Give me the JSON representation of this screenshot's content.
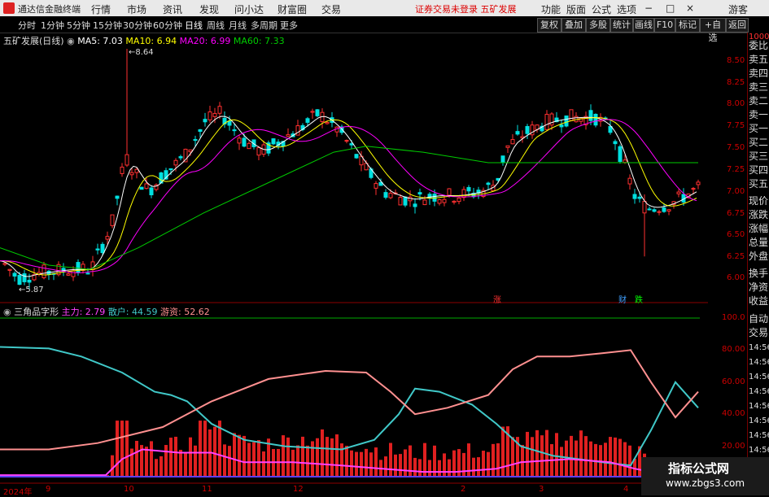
{
  "titlebar": {
    "app_name": "通达信金融终端",
    "menu": [
      "行情",
      "市场",
      "资讯",
      "发现",
      "问小达",
      "财富圈",
      "交易"
    ],
    "warning": "证券交易未登录  五矿发展",
    "right_menu": [
      "功能",
      "版面",
      "公式",
      "选项"
    ],
    "guest": "游客",
    "window_controls": [
      "−",
      "□",
      "×"
    ]
  },
  "toolbar": {
    "periods": [
      "分时",
      "1分钟",
      "5分钟",
      "15分钟",
      "30分钟",
      "60分钟",
      "日线",
      "周线",
      "月线",
      "多周期",
      "更多"
    ],
    "active_period": "日线",
    "right_buttons": [
      "复权",
      "叠加",
      "多股",
      "统计",
      "画线",
      "F10",
      "标记",
      "+自选",
      "返回"
    ]
  },
  "main_legend": {
    "name": "五矿发展(日线)",
    "ma5": "MA5: 7.03",
    "ma10": "MA10: 6.94",
    "ma20": "MA20: 6.99",
    "ma60": "MA60: 7.33"
  },
  "main_annotations": {
    "high_label": "8.64",
    "low_label": "5.87",
    "zhang": "涨",
    "cai": "财",
    "die": "跌"
  },
  "price_axis": [
    "8.50",
    "8.25",
    "8.00",
    "7.75",
    "7.50",
    "7.25",
    "7.00",
    "6.75",
    "6.50",
    "6.25",
    "6.00"
  ],
  "indicator_legend": {
    "name": "三角品字形",
    "zhuli": "主力: 2.79",
    "sanhu": "散户: 44.59",
    "youzi": "游资: 52.62"
  },
  "indicator_axis": [
    "100.0",
    "80.00",
    "60.00",
    "40.00",
    "20.00"
  ],
  "date_axis": [
    "2024年",
    "9",
    "10",
    "11",
    "12",
    "2",
    "3",
    "4"
  ],
  "right_panel": {
    "top_small": "1000",
    "items": [
      "委比",
      "卖五",
      "卖四",
      "卖三",
      "卖二",
      "卖一",
      "买一",
      "买二",
      "买三",
      "买四",
      "买五",
      "现价",
      "涨跌",
      "涨幅",
      "总量",
      "外盘",
      "换手",
      "净资",
      "收益",
      "自动",
      "交易"
    ],
    "times": [
      "14:56",
      "14:56",
      "14:56",
      "14:56",
      "14:56",
      "14:56",
      "14:56",
      "14:56"
    ]
  },
  "watermark": {
    "line1": "指标公式网",
    "line2": "www.zbgs3.com"
  },
  "colors": {
    "up": "#ff3030",
    "down": "#00e0e0",
    "ma5": "#ffffff",
    "ma10": "#ffff00",
    "ma20": "#ff00ff",
    "ma60": "#00cc00",
    "zhuli": "#ff40ff",
    "sanhu": "#40c8c8",
    "youzi": "#ff9090"
  }
}
